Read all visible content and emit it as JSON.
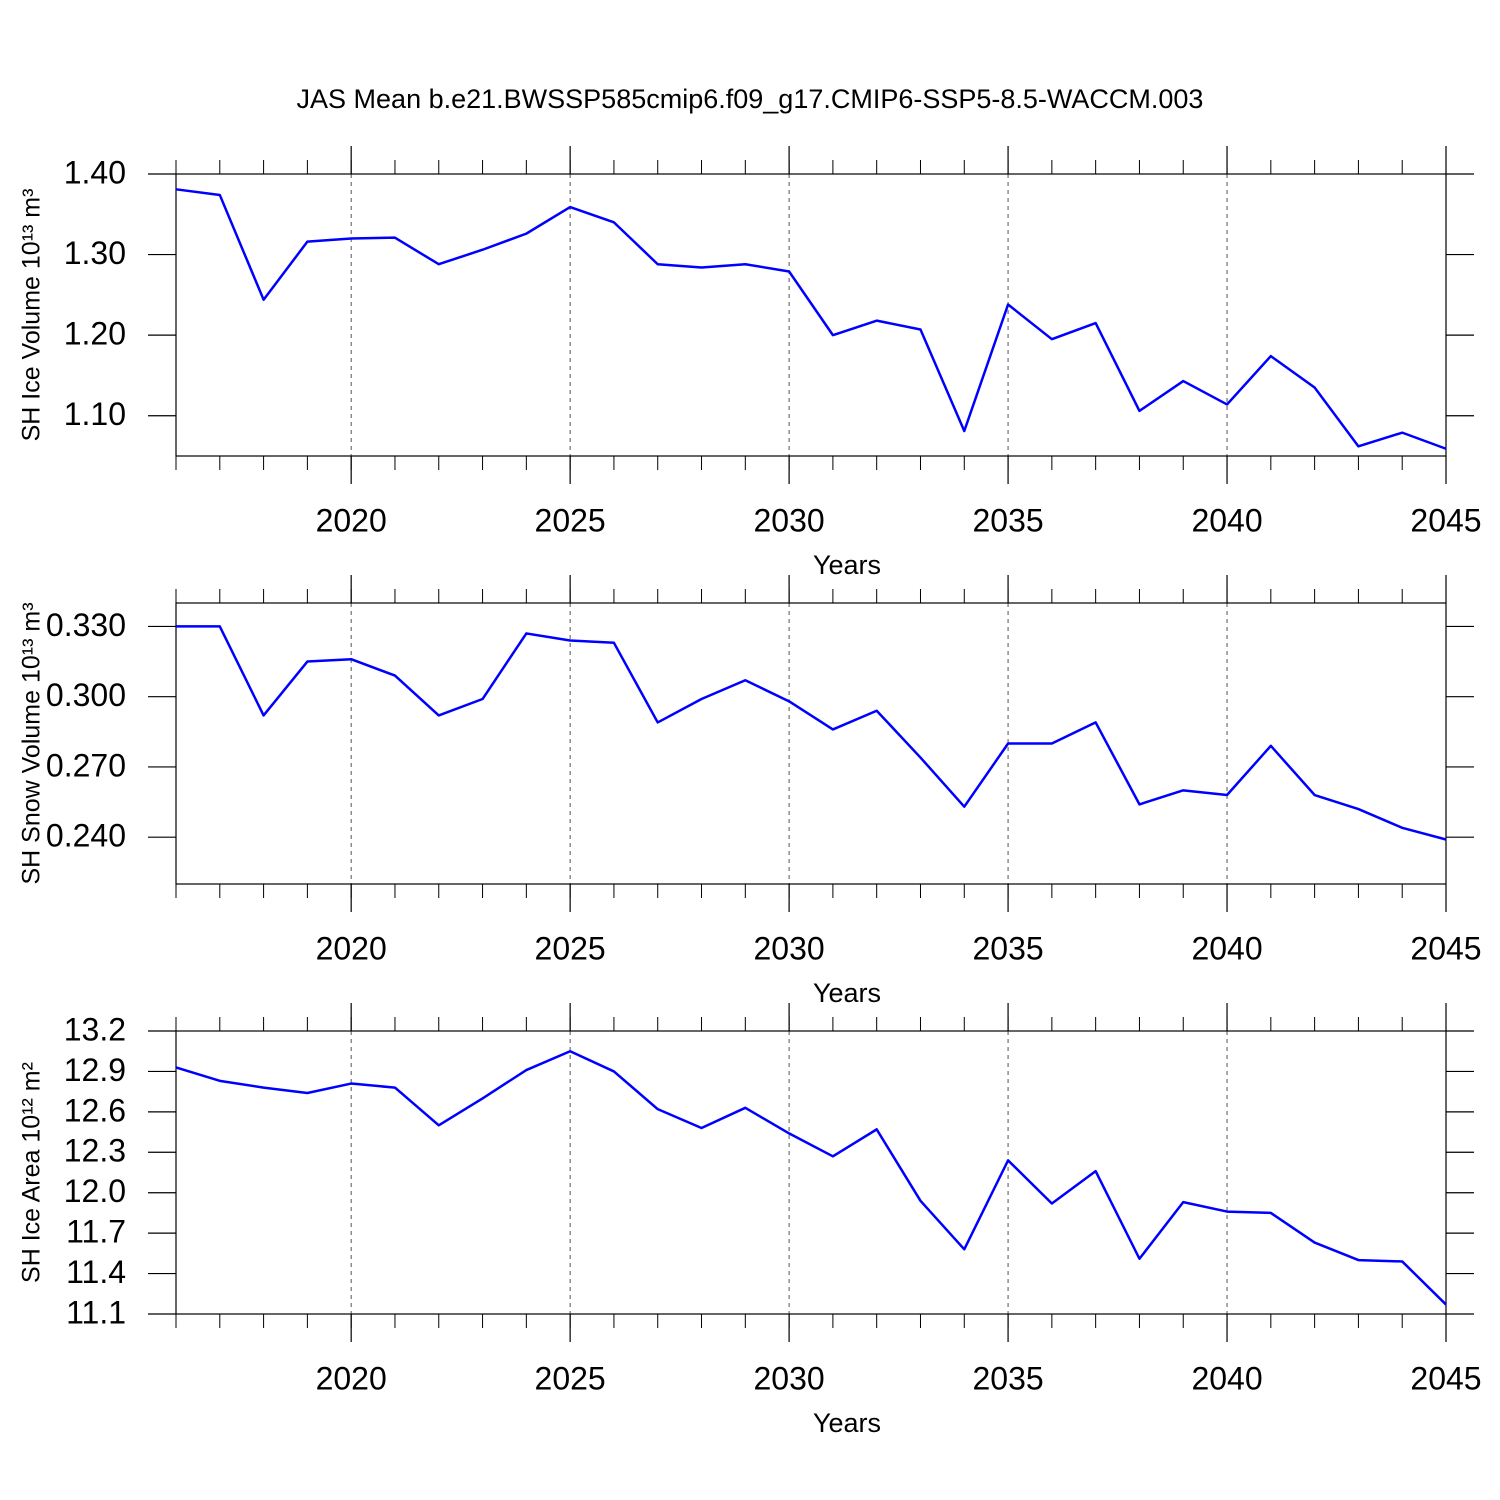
{
  "chart_data": [
    {
      "type": "line",
      "title": "JAS Mean b.e21.BWSSP585cmip6.f09_g17.CMIP6-SSP5-8.5-WACCM.003",
      "ylabel": "SH Ice Volume 10¹³ m³",
      "xlabel": "Years",
      "x": [
        2016,
        2017,
        2018,
        2019,
        2020,
        2021,
        2022,
        2023,
        2024,
        2025,
        2026,
        2027,
        2028,
        2029,
        2030,
        2031,
        2032,
        2033,
        2034,
        2035,
        2036,
        2037,
        2038,
        2039,
        2040,
        2041,
        2042,
        2043,
        2044,
        2045
      ],
      "series": [
        {
          "color": "#0000ff",
          "values": [
            1.381,
            1.374,
            1.244,
            1.316,
            1.32,
            1.321,
            1.288,
            1.306,
            1.326,
            1.359,
            1.34,
            1.288,
            1.284,
            1.288,
            1.279,
            1.2,
            1.218,
            1.207,
            1.081,
            1.238,
            1.195,
            1.215,
            1.106,
            1.143,
            1.114,
            1.174,
            1.135,
            1.062,
            1.079,
            1.059
          ]
        }
      ],
      "xlim": [
        2016,
        2045
      ],
      "xticks": [
        2020,
        2025,
        2030,
        2035,
        2040,
        2045
      ],
      "ylim": [
        1.05,
        1.4
      ],
      "yticks": [
        {
          "value": 1.1,
          "label": "1.10"
        },
        {
          "value": 1.2,
          "label": "1.20"
        },
        {
          "value": 1.3,
          "label": "1.30"
        },
        {
          "value": 1.4,
          "label": "1.40"
        }
      ],
      "grid": true
    },
    {
      "type": "line",
      "ylabel": "SH Snow Volume 10¹³ m³",
      "xlabel": "Years",
      "x": [
        2016,
        2017,
        2018,
        2019,
        2020,
        2021,
        2022,
        2023,
        2024,
        2025,
        2026,
        2027,
        2028,
        2029,
        2030,
        2031,
        2032,
        2033,
        2034,
        2035,
        2036,
        2037,
        2038,
        2039,
        2040,
        2041,
        2042,
        2043,
        2044,
        2045
      ],
      "series": [
        {
          "color": "#0000ff",
          "values": [
            0.33,
            0.33,
            0.292,
            0.315,
            0.316,
            0.309,
            0.292,
            0.299,
            0.327,
            0.324,
            0.323,
            0.289,
            0.299,
            0.307,
            0.298,
            0.286,
            0.294,
            0.274,
            0.253,
            0.28,
            0.28,
            0.289,
            0.254,
            0.26,
            0.258,
            0.279,
            0.258,
            0.252,
            0.244,
            0.239
          ]
        }
      ],
      "xlim": [
        2016,
        2045
      ],
      "xticks": [
        2020,
        2025,
        2030,
        2035,
        2040,
        2045
      ],
      "ylim": [
        0.22,
        0.34
      ],
      "yticks": [
        {
          "value": 0.24,
          "label": "0.240"
        },
        {
          "value": 0.27,
          "label": "0.270"
        },
        {
          "value": 0.3,
          "label": "0.300"
        },
        {
          "value": 0.33,
          "label": "0.330"
        }
      ],
      "grid": true
    },
    {
      "type": "line",
      "ylabel": "SH Ice Area 10¹² m²",
      "xlabel": "Years",
      "x": [
        2016,
        2017,
        2018,
        2019,
        2020,
        2021,
        2022,
        2023,
        2024,
        2025,
        2026,
        2027,
        2028,
        2029,
        2030,
        2031,
        2032,
        2033,
        2034,
        2035,
        2036,
        2037,
        2038,
        2039,
        2040,
        2041,
        2042,
        2043,
        2044,
        2045
      ],
      "series": [
        {
          "color": "#0000ff",
          "values": [
            12.93,
            12.83,
            12.78,
            12.74,
            12.81,
            12.78,
            12.5,
            12.7,
            12.91,
            13.05,
            12.9,
            12.62,
            12.48,
            12.63,
            12.44,
            12.27,
            12.47,
            11.94,
            11.58,
            12.24,
            11.92,
            12.16,
            11.51,
            11.93,
            11.86,
            11.85,
            11.63,
            11.5,
            11.49,
            11.17
          ]
        }
      ],
      "xlim": [
        2016,
        2045
      ],
      "xticks": [
        2020,
        2025,
        2030,
        2035,
        2040,
        2045
      ],
      "ylim": [
        11.1,
        13.2
      ],
      "yticks": [
        11.1,
        11.4,
        11.7,
        {
          "value": 12.0,
          "label": "12.0"
        },
        12.3,
        12.6,
        12.9,
        13.2
      ],
      "grid": true
    }
  ]
}
